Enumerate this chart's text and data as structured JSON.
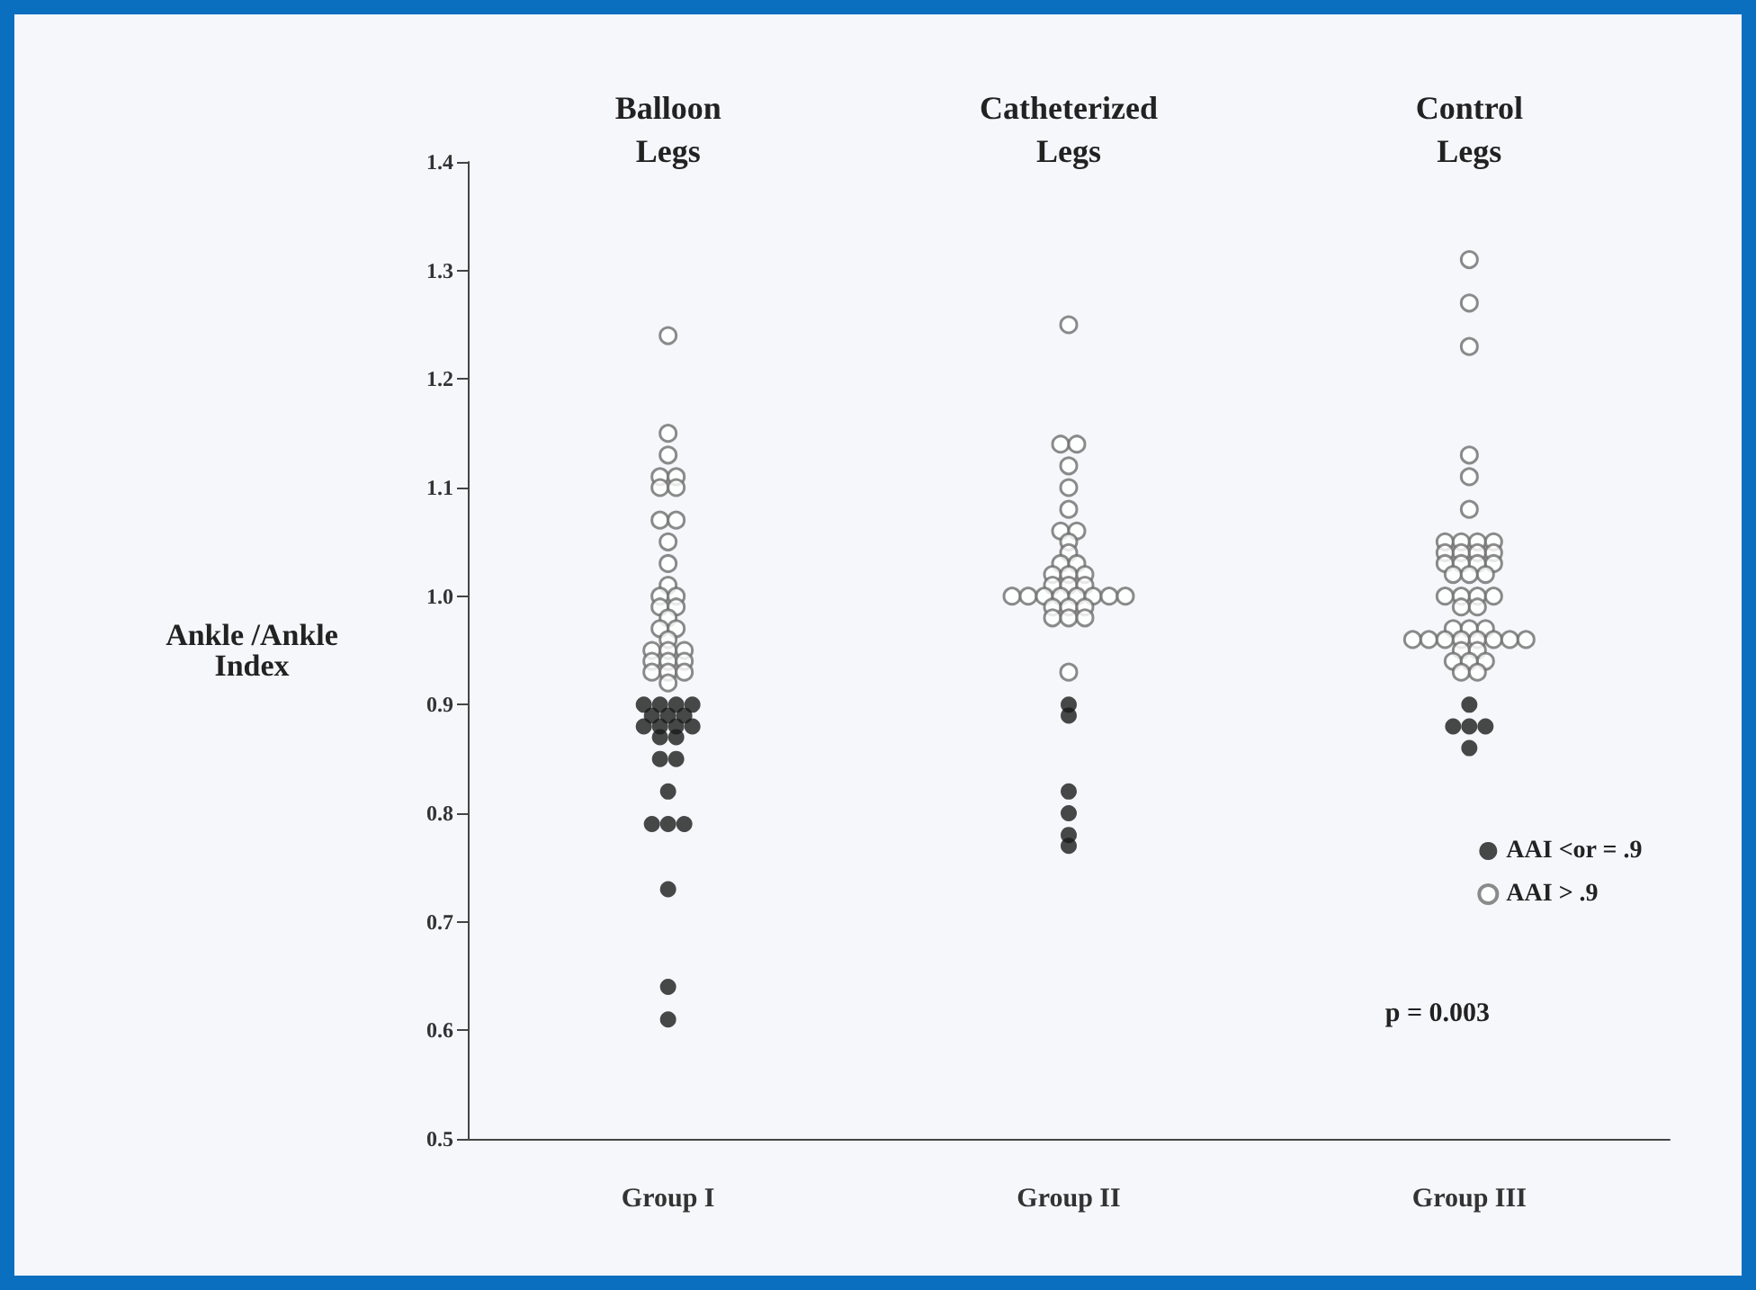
{
  "chart_data": {
    "type": "scatter",
    "ylabel": "Ankle /Ankle\nIndex",
    "categories": [
      "Group I",
      "Group II",
      "Group III"
    ],
    "ylim": [
      0.5,
      1.4
    ],
    "yticks": [
      0.5,
      0.6,
      0.7,
      0.8,
      0.9,
      {
        "value": 1,
        "label": "1.0"
      },
      1.1,
      1.2,
      1.3,
      1.4
    ],
    "grid": false,
    "legend": "bottom right",
    "marker": "circle",
    "annotations": [
      "Balloon\nLegs",
      "Catheterized\nLegs",
      "Control\nLegs",
      "p = 0.003"
    ],
    "series": [
      {
        "name": "AAI <or = .9",
        "color": "#1a1a1a",
        "x": [
          "Group I",
          "Group I",
          "Group I",
          "Group I",
          "Group I",
          "Group I",
          "Group I",
          "Group I",
          "Group I",
          "Group I",
          "Group I",
          "Group I",
          "Group I",
          "Group I",
          "Group I",
          "Group I",
          "Group I",
          "Group I",
          "Group I",
          "Group I",
          "Group I",
          "Group I",
          "Group II",
          "Group II",
          "Group II",
          "Group II",
          "Group II",
          "Group II",
          "Group III",
          "Group III",
          "Group III",
          "Group III",
          "Group III"
        ],
        "values": [
          0.9,
          0.9,
          0.9,
          0.9,
          0.89,
          0.89,
          0.89,
          0.88,
          0.88,
          0.88,
          0.88,
          0.87,
          0.87,
          0.85,
          0.85,
          0.82,
          0.79,
          0.79,
          0.79,
          0.73,
          0.64,
          0.61,
          0.9,
          0.89,
          0.82,
          0.8,
          0.78,
          0.77,
          0.9,
          0.88,
          0.88,
          0.88,
          0.86
        ]
      },
      {
        "name": "AAI > .9",
        "color": "#6e6e6e",
        "x": [
          "Group I",
          "Group I",
          "Group I",
          "Group I",
          "Group I",
          "Group I",
          "Group I",
          "Group I",
          "Group I",
          "Group I",
          "Group I",
          "Group I",
          "Group I",
          "Group I",
          "Group I",
          "Group I",
          "Group I",
          "Group I",
          "Group I",
          "Group I",
          "Group I",
          "Group I",
          "Group I",
          "Group I",
          "Group I",
          "Group I",
          "Group I",
          "Group I",
          "Group I",
          "Group I",
          "Group II",
          "Group II",
          "Group II",
          "Group II",
          "Group II",
          "Group II",
          "Group II",
          "Group II",
          "Group II",
          "Group II",
          "Group II",
          "Group II",
          "Group II",
          "Group II",
          "Group II",
          "Group II",
          "Group II",
          "Group II",
          "Group II",
          "Group II",
          "Group II",
          "Group II",
          "Group II",
          "Group II",
          "Group II",
          "Group II",
          "Group II",
          "Group II",
          "Group II",
          "Group II",
          "Group II",
          "Group II",
          "Group II",
          "Group III",
          "Group III",
          "Group III",
          "Group III",
          "Group III",
          "Group III",
          "Group III",
          "Group III",
          "Group III",
          "Group III",
          "Group III",
          "Group III",
          "Group III",
          "Group III",
          "Group III",
          "Group III",
          "Group III",
          "Group III",
          "Group III",
          "Group III",
          "Group III",
          "Group III",
          "Group III",
          "Group III",
          "Group III",
          "Group III",
          "Group III",
          "Group III",
          "Group III",
          "Group III",
          "Group III",
          "Group III",
          "Group III",
          "Group III",
          "Group III",
          "Group III",
          "Group III",
          "Group III",
          "Group III",
          "Group III",
          "Group III",
          "Group III",
          "Group III",
          "Group III",
          "Group III"
        ],
        "values": [
          1.24,
          1.15,
          1.13,
          1.11,
          1.11,
          1.1,
          1.1,
          1.07,
          1.07,
          1.05,
          1.03,
          1.01,
          1.0,
          1.0,
          0.99,
          0.99,
          0.98,
          0.97,
          0.97,
          0.96,
          0.95,
          0.95,
          0.95,
          0.94,
          0.94,
          0.94,
          0.93,
          0.93,
          0.93,
          0.92,
          1.25,
          1.14,
          1.14,
          1.12,
          1.1,
          1.08,
          1.06,
          1.06,
          1.05,
          1.04,
          1.03,
          1.03,
          1.02,
          1.02,
          1.02,
          1.01,
          1.01,
          1.01,
          1.0,
          1.0,
          1.0,
          1.0,
          1.0,
          1.0,
          1.0,
          1.0,
          0.99,
          0.99,
          0.99,
          0.98,
          0.98,
          0.98,
          0.93,
          1.31,
          1.27,
          1.23,
          1.13,
          1.11,
          1.08,
          1.05,
          1.05,
          1.05,
          1.05,
          1.04,
          1.04,
          1.04,
          1.04,
          1.03,
          1.03,
          1.03,
          1.03,
          1.02,
          1.02,
          1.02,
          1.0,
          1.0,
          1.0,
          1.0,
          0.99,
          0.99,
          0.97,
          0.97,
          0.97,
          0.96,
          0.96,
          0.96,
          0.96,
          0.96,
          0.96,
          0.96,
          0.96,
          0.95,
          0.95,
          0.94,
          0.94,
          0.94,
          0.93,
          0.93
        ]
      }
    ]
  }
}
